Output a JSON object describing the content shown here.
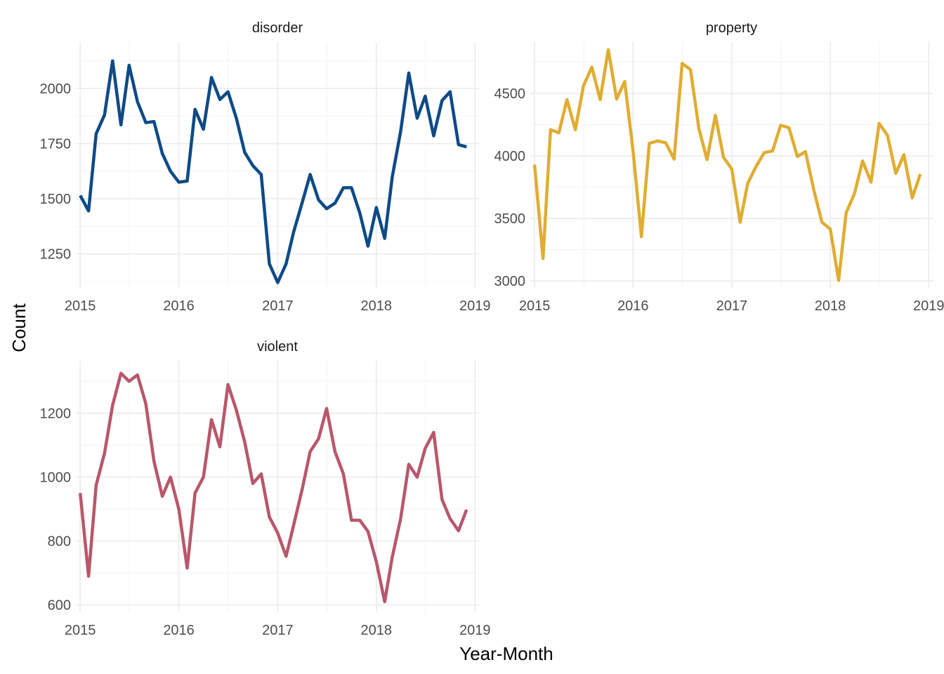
{
  "labels": {
    "ylabel": "Count",
    "xlabel": "Year-Month"
  },
  "chart_data": [
    {
      "type": "line",
      "title": "disorder",
      "color": "#0e4a86",
      "xlim": [
        "2014-12-16",
        "2019-01-16"
      ],
      "ylim": [
        1096,
        2210
      ],
      "x_ticks": [
        "2015",
        "2016",
        "2017",
        "2018",
        "2019"
      ],
      "y_ticks": [
        1250,
        1500,
        1750,
        2000
      ],
      "grid": true,
      "x": [
        "2015-01",
        "2015-02",
        "2015-03",
        "2015-04",
        "2015-05",
        "2015-06",
        "2015-07",
        "2015-08",
        "2015-09",
        "2015-10",
        "2015-11",
        "2015-12",
        "2016-01",
        "2016-02",
        "2016-03",
        "2016-04",
        "2016-05",
        "2016-06",
        "2016-07",
        "2016-08",
        "2016-09",
        "2016-10",
        "2016-11",
        "2016-12",
        "2017-01",
        "2017-02",
        "2017-03",
        "2017-04",
        "2017-05",
        "2017-06",
        "2017-07",
        "2017-08",
        "2017-09",
        "2017-10",
        "2017-11",
        "2017-12",
        "2018-01",
        "2018-02",
        "2018-03",
        "2018-04",
        "2018-05",
        "2018-06",
        "2018-07",
        "2018-08",
        "2018-09",
        "2018-10",
        "2018-11",
        "2018-12"
      ],
      "values": [
        1515,
        1445,
        1795,
        1880,
        2125,
        1835,
        2105,
        1940,
        1845,
        1850,
        1705,
        1625,
        1575,
        1580,
        1905,
        1815,
        2050,
        1950,
        1985,
        1865,
        1710,
        1650,
        1610,
        1205,
        1120,
        1205,
        1350,
        1480,
        1610,
        1495,
        1455,
        1480,
        1550,
        1550,
        1435,
        1285,
        1460,
        1320,
        1600,
        1805,
        2070,
        1865,
        1965,
        1785,
        1945,
        1985,
        1745,
        1735
      ]
    },
    {
      "type": "line",
      "title": "property",
      "color": "#e0ad32",
      "xlim": [
        "2014-12-16",
        "2019-01-16"
      ],
      "ylim": [
        2945,
        4910
      ],
      "x_ticks": [
        "2015",
        "2016",
        "2017",
        "2018",
        "2019"
      ],
      "y_ticks": [
        3000,
        3500,
        4000,
        4500
      ],
      "grid": true,
      "x": [
        "2015-01",
        "2015-02",
        "2015-03",
        "2015-04",
        "2015-05",
        "2015-06",
        "2015-07",
        "2015-08",
        "2015-09",
        "2015-10",
        "2015-11",
        "2015-12",
        "2016-01",
        "2016-02",
        "2016-03",
        "2016-04",
        "2016-05",
        "2016-06",
        "2016-07",
        "2016-08",
        "2016-09",
        "2016-10",
        "2016-11",
        "2016-12",
        "2017-01",
        "2017-02",
        "2017-03",
        "2017-04",
        "2017-05",
        "2017-06",
        "2017-07",
        "2017-08",
        "2017-09",
        "2017-10",
        "2017-11",
        "2017-12",
        "2018-01",
        "2018-02",
        "2018-03",
        "2018-04",
        "2018-05",
        "2018-06",
        "2018-07",
        "2018-08",
        "2018-09",
        "2018-10",
        "2018-11",
        "2018-12"
      ],
      "values": [
        3930,
        3180,
        4210,
        4185,
        4450,
        4210,
        4560,
        4710,
        4450,
        4850,
        4455,
        4595,
        4040,
        3355,
        4100,
        4120,
        4105,
        3975,
        4740,
        4690,
        4220,
        3970,
        4325,
        3990,
        3895,
        3470,
        3780,
        3915,
        4025,
        4040,
        4245,
        4225,
        3995,
        4035,
        3730,
        3470,
        3415,
        3005,
        3545,
        3700,
        3960,
        3790,
        4260,
        4165,
        3860,
        4010,
        3665,
        3855
      ]
    },
    {
      "type": "line",
      "title": "violent",
      "color": "#b8576b",
      "xlim": [
        "2014-12-16",
        "2019-01-16"
      ],
      "ylim": [
        577,
        1364
      ],
      "x_ticks": [
        "2015",
        "2016",
        "2017",
        "2018",
        "2019"
      ],
      "y_ticks": [
        600,
        800,
        1000,
        1200
      ],
      "grid": true,
      "x": [
        "2015-01",
        "2015-02",
        "2015-03",
        "2015-04",
        "2015-05",
        "2015-06",
        "2015-07",
        "2015-08",
        "2015-09",
        "2015-10",
        "2015-11",
        "2015-12",
        "2016-01",
        "2016-02",
        "2016-03",
        "2016-04",
        "2016-05",
        "2016-06",
        "2016-07",
        "2016-08",
        "2016-09",
        "2016-10",
        "2016-11",
        "2016-12",
        "2017-01",
        "2017-02",
        "2017-03",
        "2017-04",
        "2017-05",
        "2017-06",
        "2017-07",
        "2017-08",
        "2017-09",
        "2017-10",
        "2017-11",
        "2017-12",
        "2018-01",
        "2018-02",
        "2018-03",
        "2018-04",
        "2018-05",
        "2018-06",
        "2018-07",
        "2018-08",
        "2018-09",
        "2018-10",
        "2018-11",
        "2018-12"
      ],
      "values": [
        950,
        690,
        975,
        1075,
        1225,
        1325,
        1300,
        1320,
        1230,
        1050,
        940,
        1000,
        900,
        715,
        950,
        1000,
        1180,
        1095,
        1290,
        1210,
        1110,
        980,
        1010,
        875,
        825,
        752,
        850,
        960,
        1080,
        1120,
        1215,
        1080,
        1010,
        865,
        865,
        830,
        735,
        610,
        750,
        870,
        1040,
        1000,
        1090,
        1140,
        930,
        870,
        832,
        898
      ]
    }
  ]
}
